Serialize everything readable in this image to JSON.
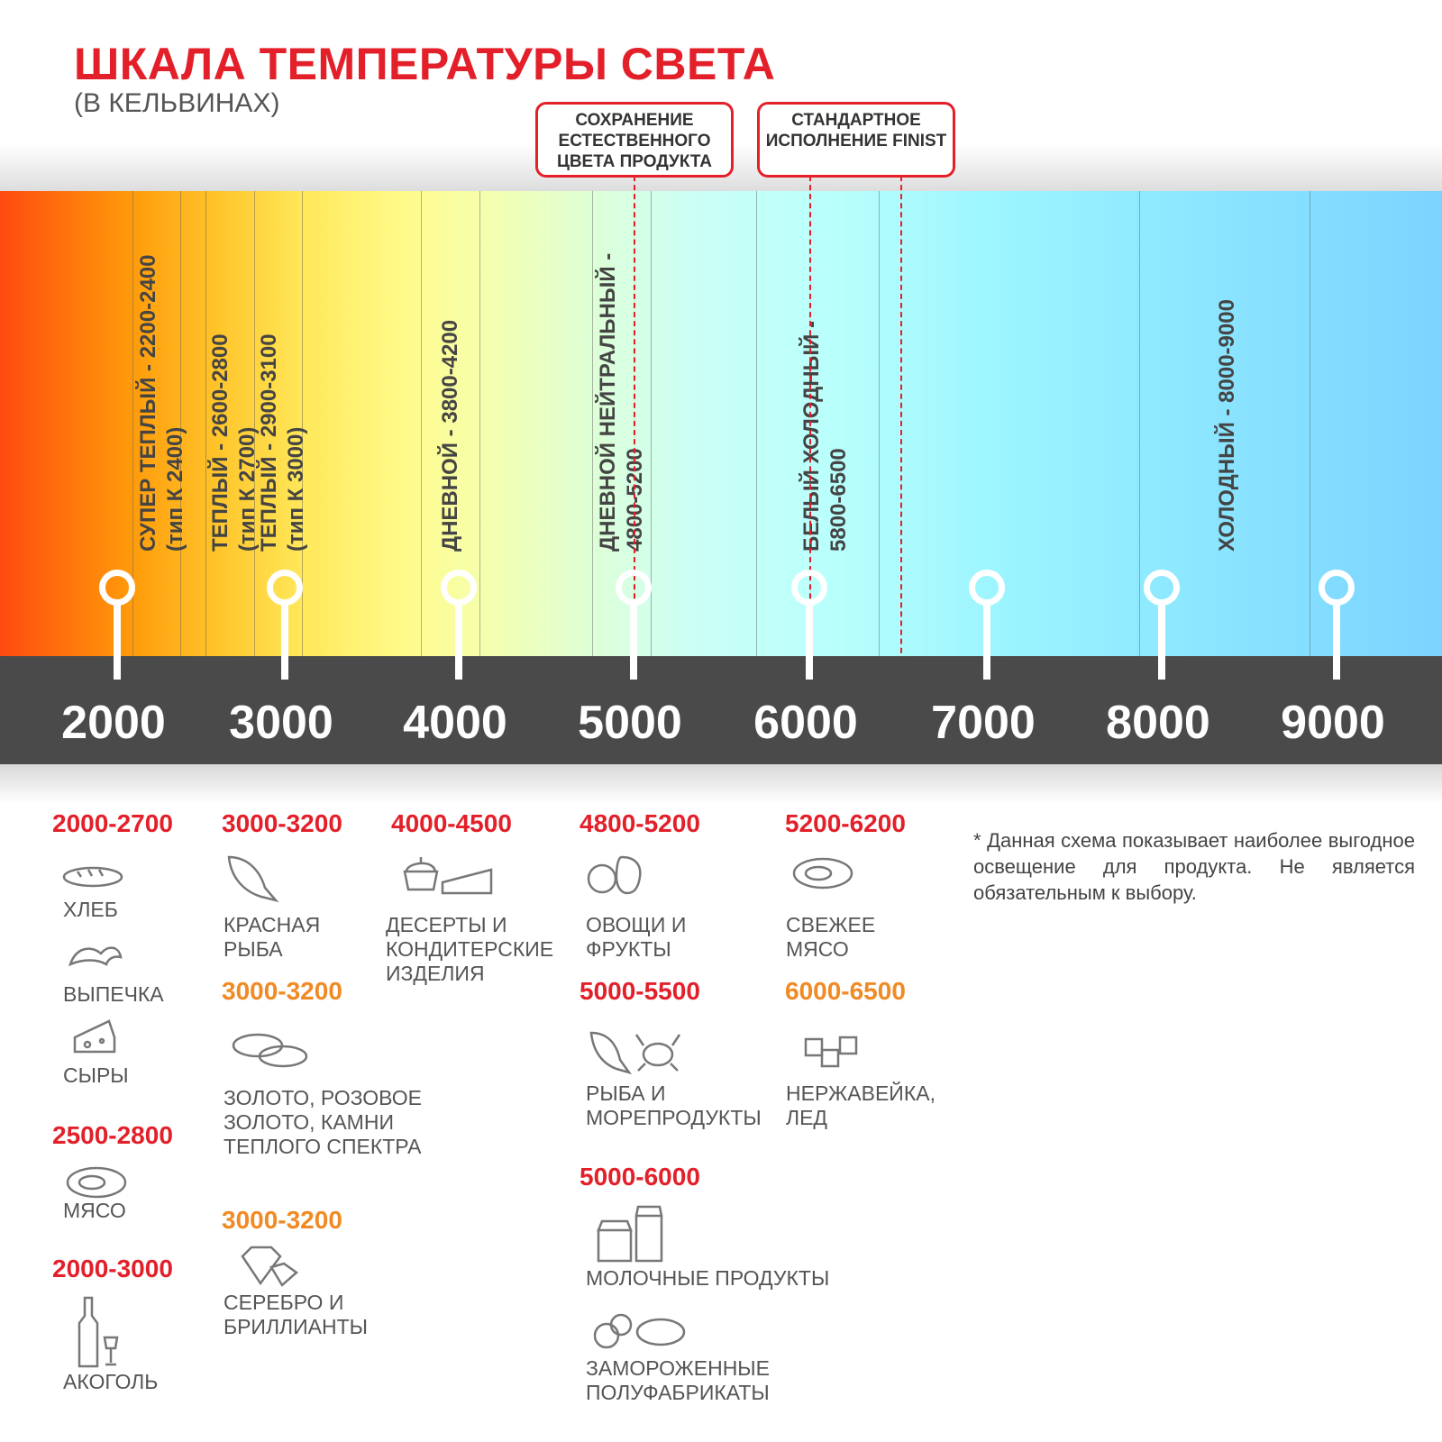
{
  "header": {
    "title": "ШКАЛА ТЕМПЕРАТУРЫ СВЕТА",
    "subtitle": "(В КЕЛЬВИНАХ)"
  },
  "callouts": [
    {
      "text": "СОХРАНЕНИЕ ЕСТЕСТВЕННОГО ЦВЕТА ПРОДУКТА"
    },
    {
      "text": "СТАНДАРТНОЕ ИСПОЛНЕНИЕ FINIST"
    }
  ],
  "scale": {
    "ticks": [
      "2000",
      "3000",
      "4000",
      "5000",
      "6000",
      "7000",
      "8000",
      "9000"
    ]
  },
  "zones": [
    {
      "line1": "СУПЕР ТЕПЛЫЙ - 2200-2400",
      "line2": "(тип К 2400)"
    },
    {
      "line1": "ТЕПЛЫЙ - 2600-2800",
      "line2": "(тип К 2700)"
    },
    {
      "line1": "ТЕПЛЫЙ - 2900-3100",
      "line2": "(тип К 3000)"
    },
    {
      "line1": "ДНЕВНОЙ - 3800-4200",
      "line2": ""
    },
    {
      "line1": "ДНЕВНОЙ НЕЙТРАЛЬНЫЙ -",
      "line2": "4800-5200"
    },
    {
      "line1": "БЕЛЫЙ ХОЛОДНЫЙ -",
      "line2": "5800-6500"
    },
    {
      "line1": "ХОЛОДНЫЙ - 8000-9000",
      "line2": ""
    }
  ],
  "products": [
    {
      "range": "2000-2700",
      "items": [
        "ХЛЕБ",
        "ВЫПЕЧКА",
        "СЫРЫ"
      ]
    },
    {
      "range": "2500-2800",
      "items": [
        "МЯСО"
      ]
    },
    {
      "range": "2000-3000",
      "items": [
        "АКОГОЛЬ"
      ]
    },
    {
      "range": "3000-3200",
      "items": [
        "КРАСНАЯ РЫБА"
      ]
    },
    {
      "range": "3000-3200",
      "items": [
        "ЗОЛОТО, РОЗОВОЕ ЗОЛОТО, КАМНИ ТЕПЛОГО СПЕКТРА"
      ]
    },
    {
      "range": "3000-3200",
      "items": [
        "СЕРЕБРО И БРИЛЛИАНТЫ"
      ]
    },
    {
      "range": "4000-4500",
      "items": [
        "ДЕСЕРТЫ И КОНДИТЕРСКИЕ ИЗДЕЛИЯ"
      ]
    },
    {
      "range": "4800-5200",
      "items": [
        "ОВОЩИ И ФРУКТЫ"
      ]
    },
    {
      "range": "5000-5500",
      "items": [
        "РЫБА И МОРЕПРОДУКТЫ"
      ]
    },
    {
      "range": "5000-6000",
      "items": [
        "МОЛОЧНЫЕ ПРОДУКТЫ",
        "ЗАМОРОЖЕННЫЕ ПОЛУФАБРИКАТЫ"
      ]
    },
    {
      "range": "5200-6200",
      "items": [
        "СВЕЖЕЕ МЯСО"
      ]
    },
    {
      "range": "6000-6500",
      "items": [
        "НЕРЖАВЕЙКА, ЛЕД"
      ]
    }
  ],
  "note": "*  Данная схема показывает наиболее выгодное освещение для продукта. Не является обязательным к выбору.",
  "colors": {
    "accent": "#e3202a",
    "secondary": "#f08a24",
    "band": "#4a4a4a"
  }
}
